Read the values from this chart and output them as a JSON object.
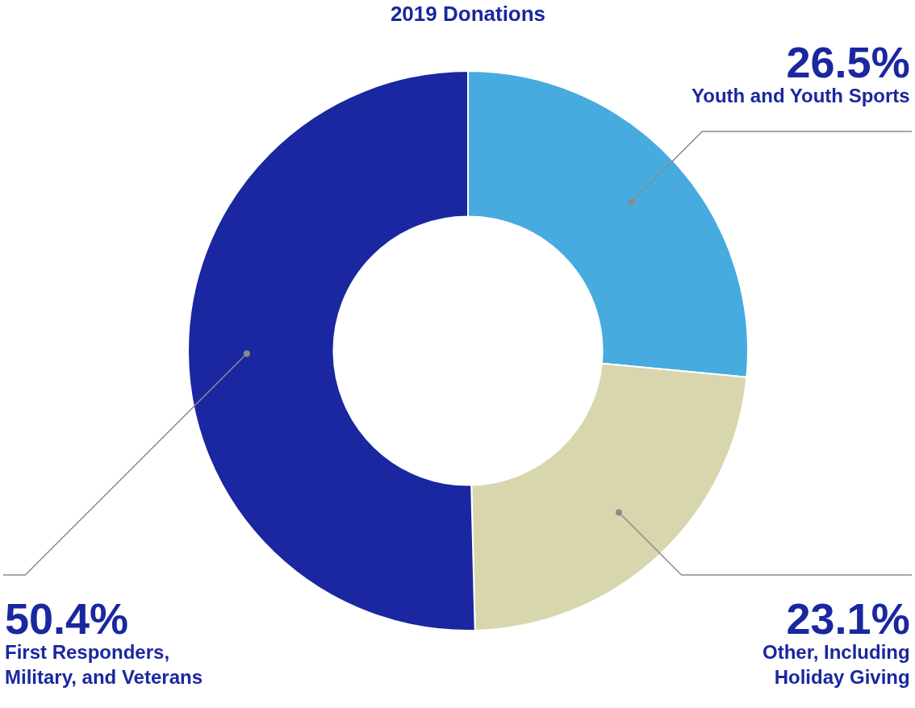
{
  "chart_data": {
    "type": "donut",
    "title": "2019 Donations",
    "categories": [
      "Youth and Youth Sports",
      "Other, Including Holiday Giving",
      "First Responders, Military, and Veterans"
    ],
    "values": [
      26.5,
      23.1,
      50.4
    ],
    "value_labels": [
      "26.5%",
      "23.1%",
      "50.4%"
    ],
    "colors": [
      "#47abe0",
      "#d8d6ad",
      "#1a27a0"
    ],
    "legend": false
  }
}
